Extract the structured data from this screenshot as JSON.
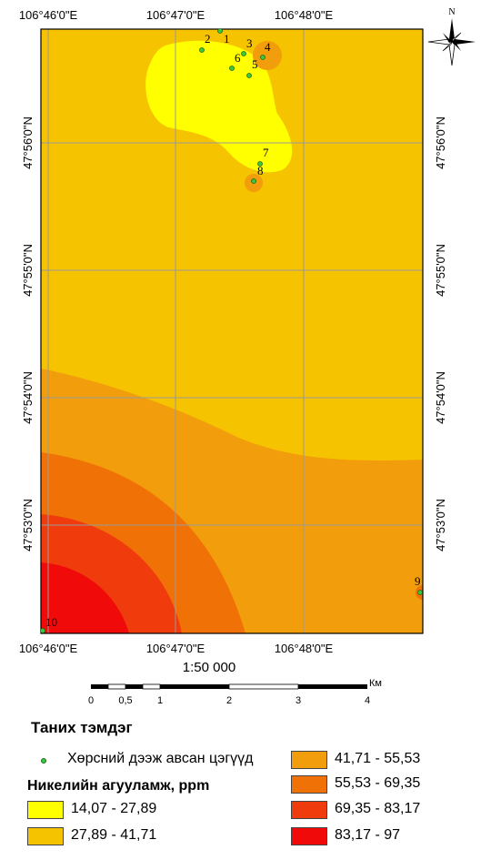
{
  "coords": {
    "top_lon": [
      "106°46'0\"E",
      "106°47'0\"E",
      "106°48'0\"E"
    ],
    "bottom_lon": [
      "106°46'0\"E",
      "106°47'0\"E",
      "106°48'0\"E"
    ],
    "left_lat": [
      "47°56'0\"N",
      "47°55'0\"N",
      "47°54'0\"N",
      "47°53'0\"N"
    ],
    "right_lat": [
      "47°56'0\"N",
      "47°55'0\"N",
      "47°54'0\"N",
      "47°53'0\"N"
    ]
  },
  "north_arrow": {
    "label": "N",
    "icon": "north-arrow-icon"
  },
  "sample_points": [
    "1",
    "2",
    "3",
    "4",
    "5",
    "6",
    "7",
    "8",
    "9",
    "10"
  ],
  "scale": {
    "ratio": "1:50 000",
    "unit": "Км",
    "ticks": [
      "0",
      "0,5",
      "1",
      "2",
      "3",
      "4"
    ]
  },
  "legend": {
    "title": "Таних тэмдэг",
    "points_label": "Хөрсний дээж авсан цэгүүд",
    "subtitle": "Никелийн агууламж, ppm",
    "classes": [
      {
        "label": "14,07 - 27,89",
        "color": "#ffff00"
      },
      {
        "label": "27,89 - 41,71",
        "color": "#f5c300"
      },
      {
        "label": "41,71 - 55,53",
        "color": "#f29d0b"
      },
      {
        "label": "55,53 - 69,35",
        "color": "#f07207"
      },
      {
        "label": "69,35 - 83,17",
        "color": "#f03c0c"
      },
      {
        "label": "83,17 - 97",
        "color": "#f00a0a"
      }
    ]
  }
}
